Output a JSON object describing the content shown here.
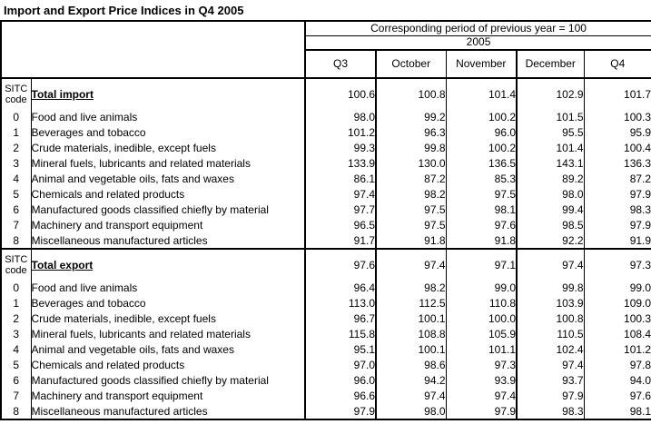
{
  "title": "Import and Export Price Indices in Q4 2005",
  "chart_data": {
    "type": "table",
    "title": "Import and Export Price Indices in Q4 2005",
    "header_note": "Corresponding period of previous year = 100",
    "year": "2005",
    "code_header_line1": "SITC",
    "code_header_line2": "code",
    "columns": [
      "Q3",
      "October",
      "November",
      "December",
      "Q4"
    ],
    "sections": [
      {
        "total_label": "Total import",
        "total_values": [
          "100.6",
          "100.8",
          "101.4",
          "102.9",
          "101.7"
        ],
        "rows": [
          {
            "code": "0",
            "label": "Food and live animals",
            "values": [
              "98.0",
              "99.2",
              "100.2",
              "101.5",
              "100.3"
            ]
          },
          {
            "code": "1",
            "label": "Beverages and tobacco",
            "values": [
              "101.2",
              "96.3",
              "96.0",
              "95.5",
              "95.9"
            ]
          },
          {
            "code": "2",
            "label": "Crude materials, inedible, except fuels",
            "values": [
              "99.3",
              "99.8",
              "100.2",
              "101.4",
              "100.4"
            ]
          },
          {
            "code": "3",
            "label": "Mineral fuels, lubricants and related materials",
            "values": [
              "133.9",
              "130.0",
              "136.5",
              "143.1",
              "136.3"
            ]
          },
          {
            "code": "4",
            "label": "Animal and vegetable oils, fats and waxes",
            "values": [
              "86.1",
              "87.2",
              "85.3",
              "89.2",
              "87.2"
            ]
          },
          {
            "code": "5",
            "label": "Chemicals and related products",
            "values": [
              "97.4",
              "98.2",
              "97.5",
              "98.0",
              "97.9"
            ]
          },
          {
            "code": "6",
            "label": "Manufactured goods classified chiefly by material",
            "values": [
              "97.7",
              "97.5",
              "98.1",
              "99.4",
              "98.3"
            ]
          },
          {
            "code": "7",
            "label": "Machinery and transport equipment",
            "values": [
              "96.5",
              "97.5",
              "97.6",
              "98.5",
              "97.9"
            ]
          },
          {
            "code": "8",
            "label": "Miscellaneous manufactured articles",
            "values": [
              "91.7",
              "91.8",
              "91.8",
              "92.2",
              "91.9"
            ]
          }
        ]
      },
      {
        "total_label": "Total export",
        "total_values": [
          "97.6",
          "97.4",
          "97.1",
          "97.4",
          "97.3"
        ],
        "rows": [
          {
            "code": "0",
            "label": "Food and live animals",
            "values": [
              "96.4",
              "98.2",
              "99.0",
              "99.8",
              "99.0"
            ]
          },
          {
            "code": "1",
            "label": "Beverages and tobacco",
            "values": [
              "113.0",
              "112.5",
              "110.8",
              "103.9",
              "109.0"
            ]
          },
          {
            "code": "2",
            "label": "Crude materials, inedible, except fuels",
            "values": [
              "96.7",
              "100.1",
              "100.0",
              "100.8",
              "100.3"
            ]
          },
          {
            "code": "3",
            "label": "Mineral fuels, lubricants and related materials",
            "values": [
              "115.8",
              "108.8",
              "105.9",
              "110.5",
              "108.4"
            ]
          },
          {
            "code": "4",
            "label": "Animal and vegetable oils, fats and waxes",
            "values": [
              "95.1",
              "100.1",
              "101.1",
              "102.4",
              "101.2"
            ]
          },
          {
            "code": "5",
            "label": "Chemicals and related products",
            "values": [
              "97.0",
              "98.6",
              "97.3",
              "97.4",
              "97.8"
            ]
          },
          {
            "code": "6",
            "label": "Manufactured goods classified chiefly by material",
            "values": [
              "96.0",
              "94.2",
              "93.9",
              "93.7",
              "94.0"
            ]
          },
          {
            "code": "7",
            "label": "Machinery and transport equipment",
            "values": [
              "96.6",
              "97.4",
              "97.4",
              "97.9",
              "97.6"
            ]
          },
          {
            "code": "8",
            "label": "Miscellaneous manufactured articles",
            "values": [
              "97.9",
              "98.0",
              "97.9",
              "98.3",
              "98.1"
            ]
          }
        ]
      }
    ]
  }
}
